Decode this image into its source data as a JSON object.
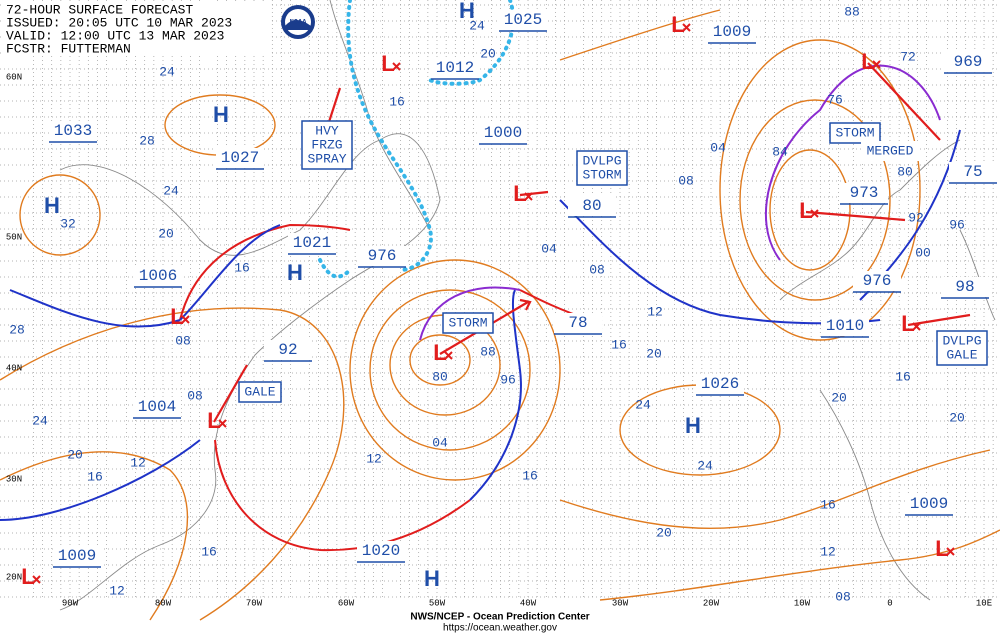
{
  "header": {
    "lines": [
      "72-HOUR SURFACE FORECAST",
      "ISSUED: 20:05 UTC 10 MAR 2023",
      "VALID:  12:00 UTC 13 MAR 2023",
      "FCSTR:  FUTTERMAN"
    ]
  },
  "pressure_labels": [
    "1033",
    "1027",
    "1006",
    "1021",
    "976",
    "1000",
    "1025",
    "1012",
    "1009",
    "969",
    "973",
    "976",
    "1010",
    "98",
    "78",
    "92",
    "80",
    "75",
    "1026",
    "1004",
    "1009",
    "1020",
    "1009"
  ],
  "highs": [
    "H",
    "H",
    "H",
    "H",
    "H",
    "H"
  ],
  "lows": [
    "L",
    "L",
    "L",
    "L",
    "L",
    "L",
    "L",
    "L",
    "L",
    "L",
    "L"
  ],
  "warnings": [
    {
      "lines": [
        "HVY",
        "FRZG",
        "SPRAY"
      ]
    },
    {
      "lines": [
        "DVLPG",
        "STORM"
      ]
    },
    {
      "lines": [
        "STORM"
      ]
    },
    {
      "lines": [
        "STORM"
      ]
    },
    {
      "lines": [
        "MERGED"
      ]
    },
    {
      "lines": [
        "GALE"
      ]
    },
    {
      "lines": [
        "DVLPG",
        "GALE"
      ]
    }
  ],
  "isobar_labels": [
    "24",
    "28",
    "24",
    "32",
    "20",
    "16",
    "28",
    "08",
    "24",
    "20",
    "12",
    "16",
    "08",
    "16",
    "12",
    "16",
    "24",
    "20",
    "04",
    "08",
    "12",
    "88",
    "80",
    "96",
    "04",
    "12",
    "16",
    "16",
    "20",
    "24",
    "24",
    "20",
    "16",
    "12",
    "08",
    "20",
    "16",
    "20",
    "96",
    "00",
    "92",
    "80",
    "84",
    "76",
    "72",
    "88",
    "04",
    "08"
  ],
  "latitude_labels": [
    "60N",
    "50N",
    "40N",
    "30N",
    "20N"
  ],
  "longitude_labels": [
    "90W",
    "80W",
    "70W",
    "60W",
    "50W",
    "40W",
    "30W",
    "20W",
    "10W",
    "0",
    "10E"
  ],
  "logo": "NOAA",
  "footer": {
    "agency": "NWS/NCEP - Ocean Prediction Center",
    "url": "https://ocean.weather.gov"
  }
}
